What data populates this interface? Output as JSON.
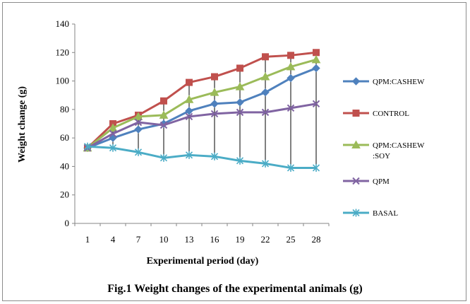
{
  "chart_data": {
    "type": "line",
    "title": "",
    "caption": "Fig.1 Weight changes of the experimental animals (g)",
    "xlabel": "Experimental period (day)",
    "ylabel": "Weight change (g)",
    "categories": [
      "1",
      "4",
      "7",
      "10",
      "13",
      "16",
      "19",
      "22",
      "25",
      "28"
    ],
    "ylim": [
      0,
      140
    ],
    "yticks": [
      0,
      20,
      40,
      60,
      80,
      100,
      120,
      140
    ],
    "grid": false,
    "drop_lines": true,
    "legend_position": "right",
    "series": [
      {
        "name": "QPM:CASHEW",
        "color": "#4f81bd",
        "marker": "diamond",
        "values": [
          53,
          60,
          66,
          70,
          79,
          84,
          85,
          92,
          102,
          109
        ]
      },
      {
        "name": "CONTROL",
        "color": "#c0504d",
        "marker": "square",
        "values": [
          53,
          70,
          76,
          86,
          99,
          103,
          109,
          117,
          118,
          120
        ]
      },
      {
        "name": "QPM:CASHEW :SOY",
        "color": "#9bbb59",
        "marker": "triangle",
        "values": [
          53,
          67,
          75,
          76,
          87,
          92,
          96,
          103,
          110,
          115
        ]
      },
      {
        "name": "QPM",
        "color": "#8064a2",
        "marker": "x",
        "values": [
          53,
          63,
          71,
          69,
          75,
          77,
          78,
          78,
          81,
          84
        ]
      },
      {
        "name": "BASAL",
        "color": "#4bacc6",
        "marker": "star",
        "values": [
          54,
          53,
          50,
          46,
          48,
          47,
          44,
          42,
          39,
          39
        ]
      }
    ]
  }
}
